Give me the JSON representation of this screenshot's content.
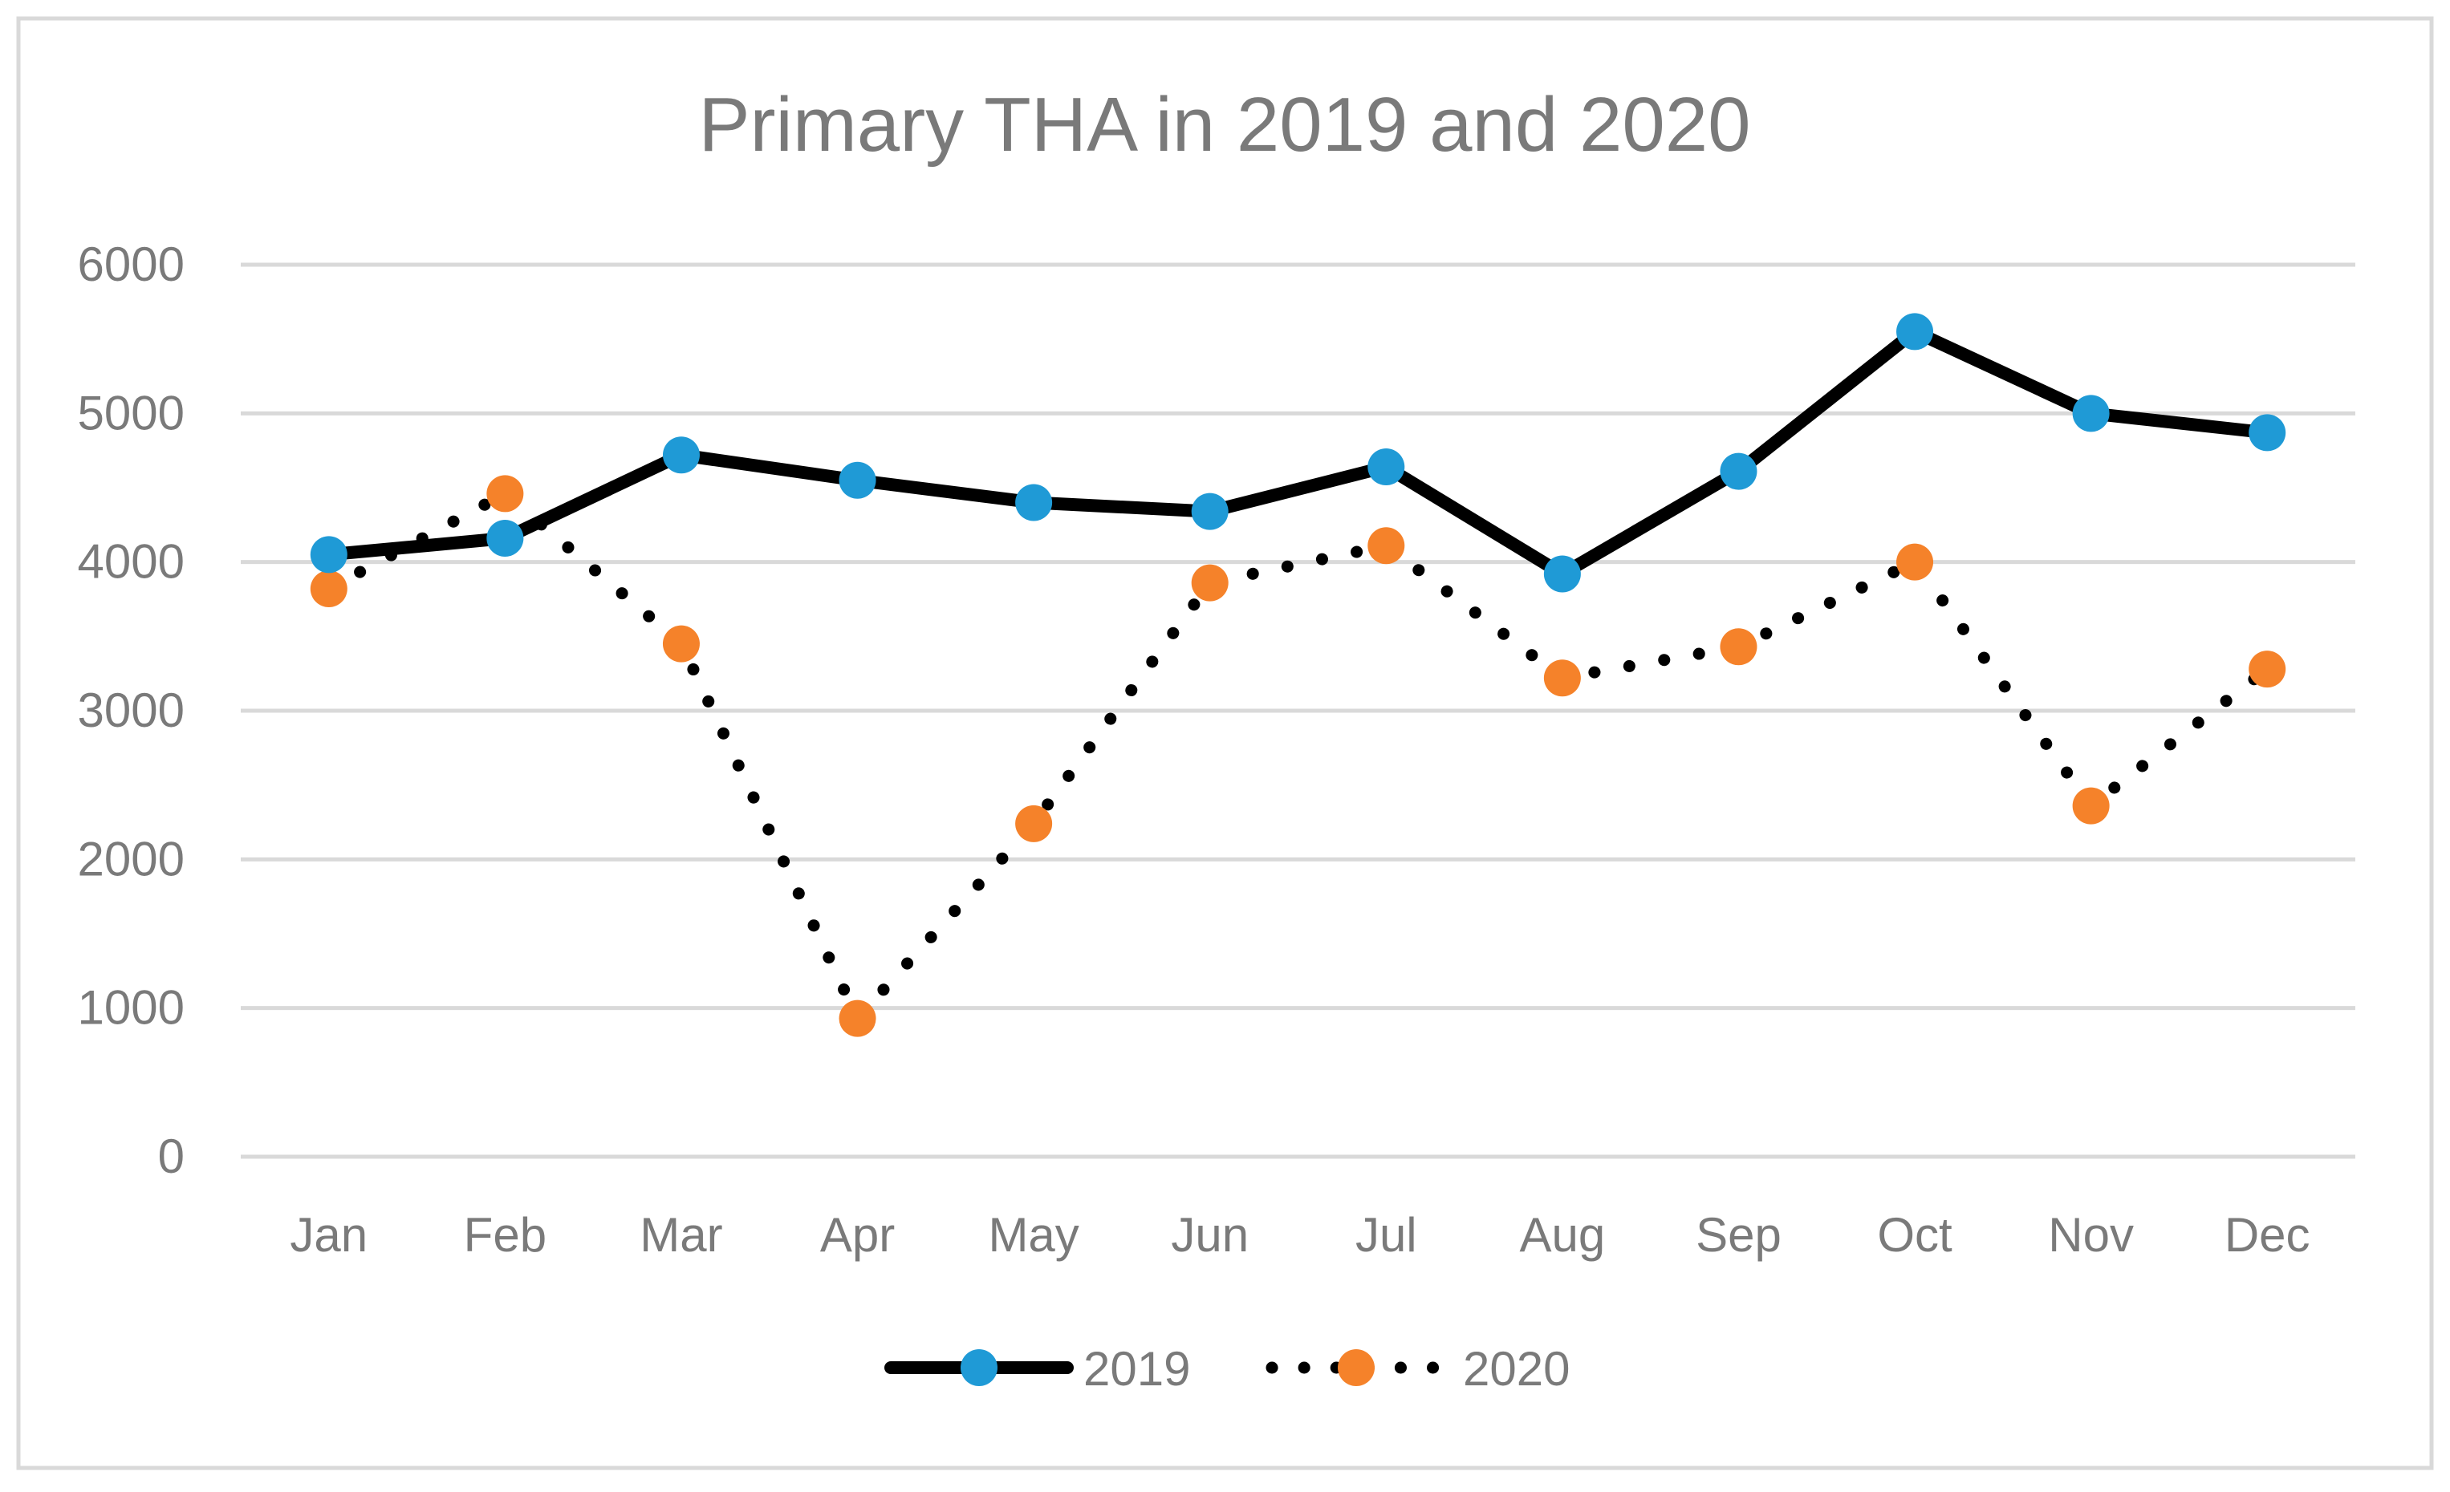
{
  "chart_data": {
    "type": "line",
    "title": "Primary THA in 2019 and 2020",
    "xlabel": "",
    "ylabel": "",
    "categories": [
      "Jan",
      "Feb",
      "Mar",
      "Apr",
      "May",
      "Jun",
      "Jul",
      "Aug",
      "Sep",
      "Oct",
      "Nov",
      "Dec"
    ],
    "ylim": [
      0,
      6000
    ],
    "yticks": [
      0,
      1000,
      2000,
      3000,
      4000,
      5000,
      6000
    ],
    "grid": true,
    "legend_position": "bottom",
    "series": [
      {
        "name": "2019",
        "line_style": "solid",
        "line_color": "#000000",
        "marker_color": "#1f9ad6",
        "values": [
          4050,
          4160,
          4720,
          4550,
          4400,
          4340,
          4640,
          3920,
          4610,
          5550,
          5000,
          4870
        ]
      },
      {
        "name": "2020",
        "line_style": "dotted",
        "line_color": "#000000",
        "marker_color": "#f5822a",
        "values": [
          3820,
          4460,
          3450,
          930,
          2240,
          3860,
          4110,
          3220,
          3430,
          4000,
          2360,
          3280
        ]
      }
    ]
  },
  "colors": {
    "text": "#7a7a7a",
    "grid": "#d9d9d9",
    "frame": "#d9d9d9"
  }
}
